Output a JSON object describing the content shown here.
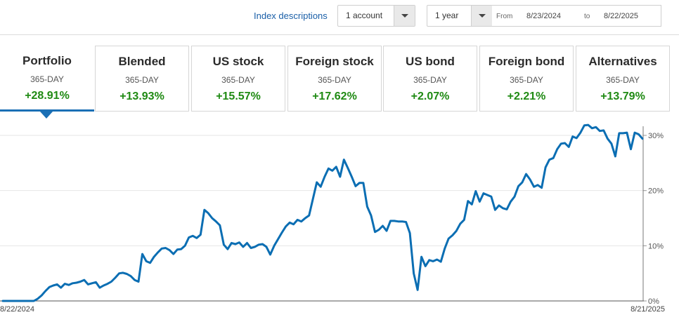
{
  "header": {
    "index_link": "Index descriptions",
    "account_select": "1 account",
    "period_select": "1 year",
    "from_label": "From",
    "from_date": "8/23/2024",
    "to_label": "to",
    "to_date": "8/22/2025"
  },
  "cards": [
    {
      "name": "Portfolio",
      "sub": "365-DAY",
      "pct": "+28.91%"
    },
    {
      "name": "Blended",
      "sub": "365-DAY",
      "pct": "+13.93%"
    },
    {
      "name": "US stock",
      "sub": "365-DAY",
      "pct": "+15.57%"
    },
    {
      "name": "Foreign stock",
      "sub": "365-DAY",
      "pct": "+17.62%"
    },
    {
      "name": "US bond",
      "sub": "365-DAY",
      "pct": "+2.07%"
    },
    {
      "name": "Foreign bond",
      "sub": "365-DAY",
      "pct": "+2.21%"
    },
    {
      "name": "Alternatives",
      "sub": "365-DAY",
      "pct": "+13.79%"
    }
  ],
  "colors": {
    "line": "#0b6eb3",
    "positive": "#1f8a13",
    "accent": "#1a6fb5"
  },
  "chart_data": {
    "type": "line",
    "title": "",
    "xlabel": "",
    "ylabel": "",
    "x_start_label": "8/22/2024",
    "x_end_label": "8/21/2025",
    "ylim": [
      0,
      31
    ],
    "yticks": [
      0,
      10,
      20,
      30
    ],
    "ytick_labels": [
      "0%",
      "10%",
      "20%",
      "30%"
    ],
    "grid": true,
    "series": [
      {
        "values": [
          0,
          0,
          0,
          0,
          0,
          0,
          0,
          0,
          0,
          0.4,
          1,
          1.8,
          2.5,
          2.8,
          3,
          2.4,
          3.1,
          2.9,
          3.2,
          3.3,
          3.5,
          3.8,
          3,
          3.2,
          3.4,
          2.4,
          2.8,
          3.1,
          3.5,
          4.2,
          5,
          5.1,
          4.9,
          4.5,
          3.8,
          3.5,
          8.5,
          7.2,
          6.9,
          8,
          8.8,
          9.5,
          9.6,
          9.2,
          8.5,
          9.3,
          9.4,
          10,
          11.5,
          11.8,
          11.4,
          12,
          16.5,
          15.9,
          15,
          14.4,
          13.7,
          10.2,
          9.4,
          10.5,
          10.3,
          10.6,
          9.8,
          10.5,
          9.6,
          9.8,
          10.2,
          10.3,
          9.8,
          8.4,
          10,
          11.2,
          12.4,
          13.5,
          14.2,
          13.9,
          14.7,
          14.4,
          15,
          15.5,
          18.5,
          21.5,
          20.7,
          22.5,
          24,
          23.6,
          24.3,
          22.5,
          25.6,
          24.1,
          22.5,
          20.8,
          21.4,
          21.4,
          17.1,
          15.5,
          12.5,
          12.9,
          13.6,
          12.7,
          14.5,
          14.5,
          14.4,
          14.4,
          14.3,
          12.3,
          5,
          2,
          8,
          6.3,
          7.4,
          7.2,
          7.5,
          7.1,
          9.5,
          11.3,
          11.9,
          12.7,
          14,
          14.7,
          18.1,
          17.5,
          19.9,
          18,
          19.5,
          19.2,
          18.9,
          16.5,
          17.3,
          16.8,
          16.6,
          18,
          18.9,
          20.8,
          21.5,
          23,
          22,
          20.7,
          21,
          20.5,
          24.2,
          25.6,
          25.9,
          27.5,
          28.5,
          28.6,
          27.9,
          29.8,
          29.5,
          30.5,
          31.8,
          31.9,
          31.3,
          31.5,
          30.8,
          30.9,
          29.4,
          28.5,
          26.2,
          30.4,
          30.4,
          30.5,
          27.5,
          30.5,
          30.2,
          29.4
        ]
      }
    ]
  }
}
